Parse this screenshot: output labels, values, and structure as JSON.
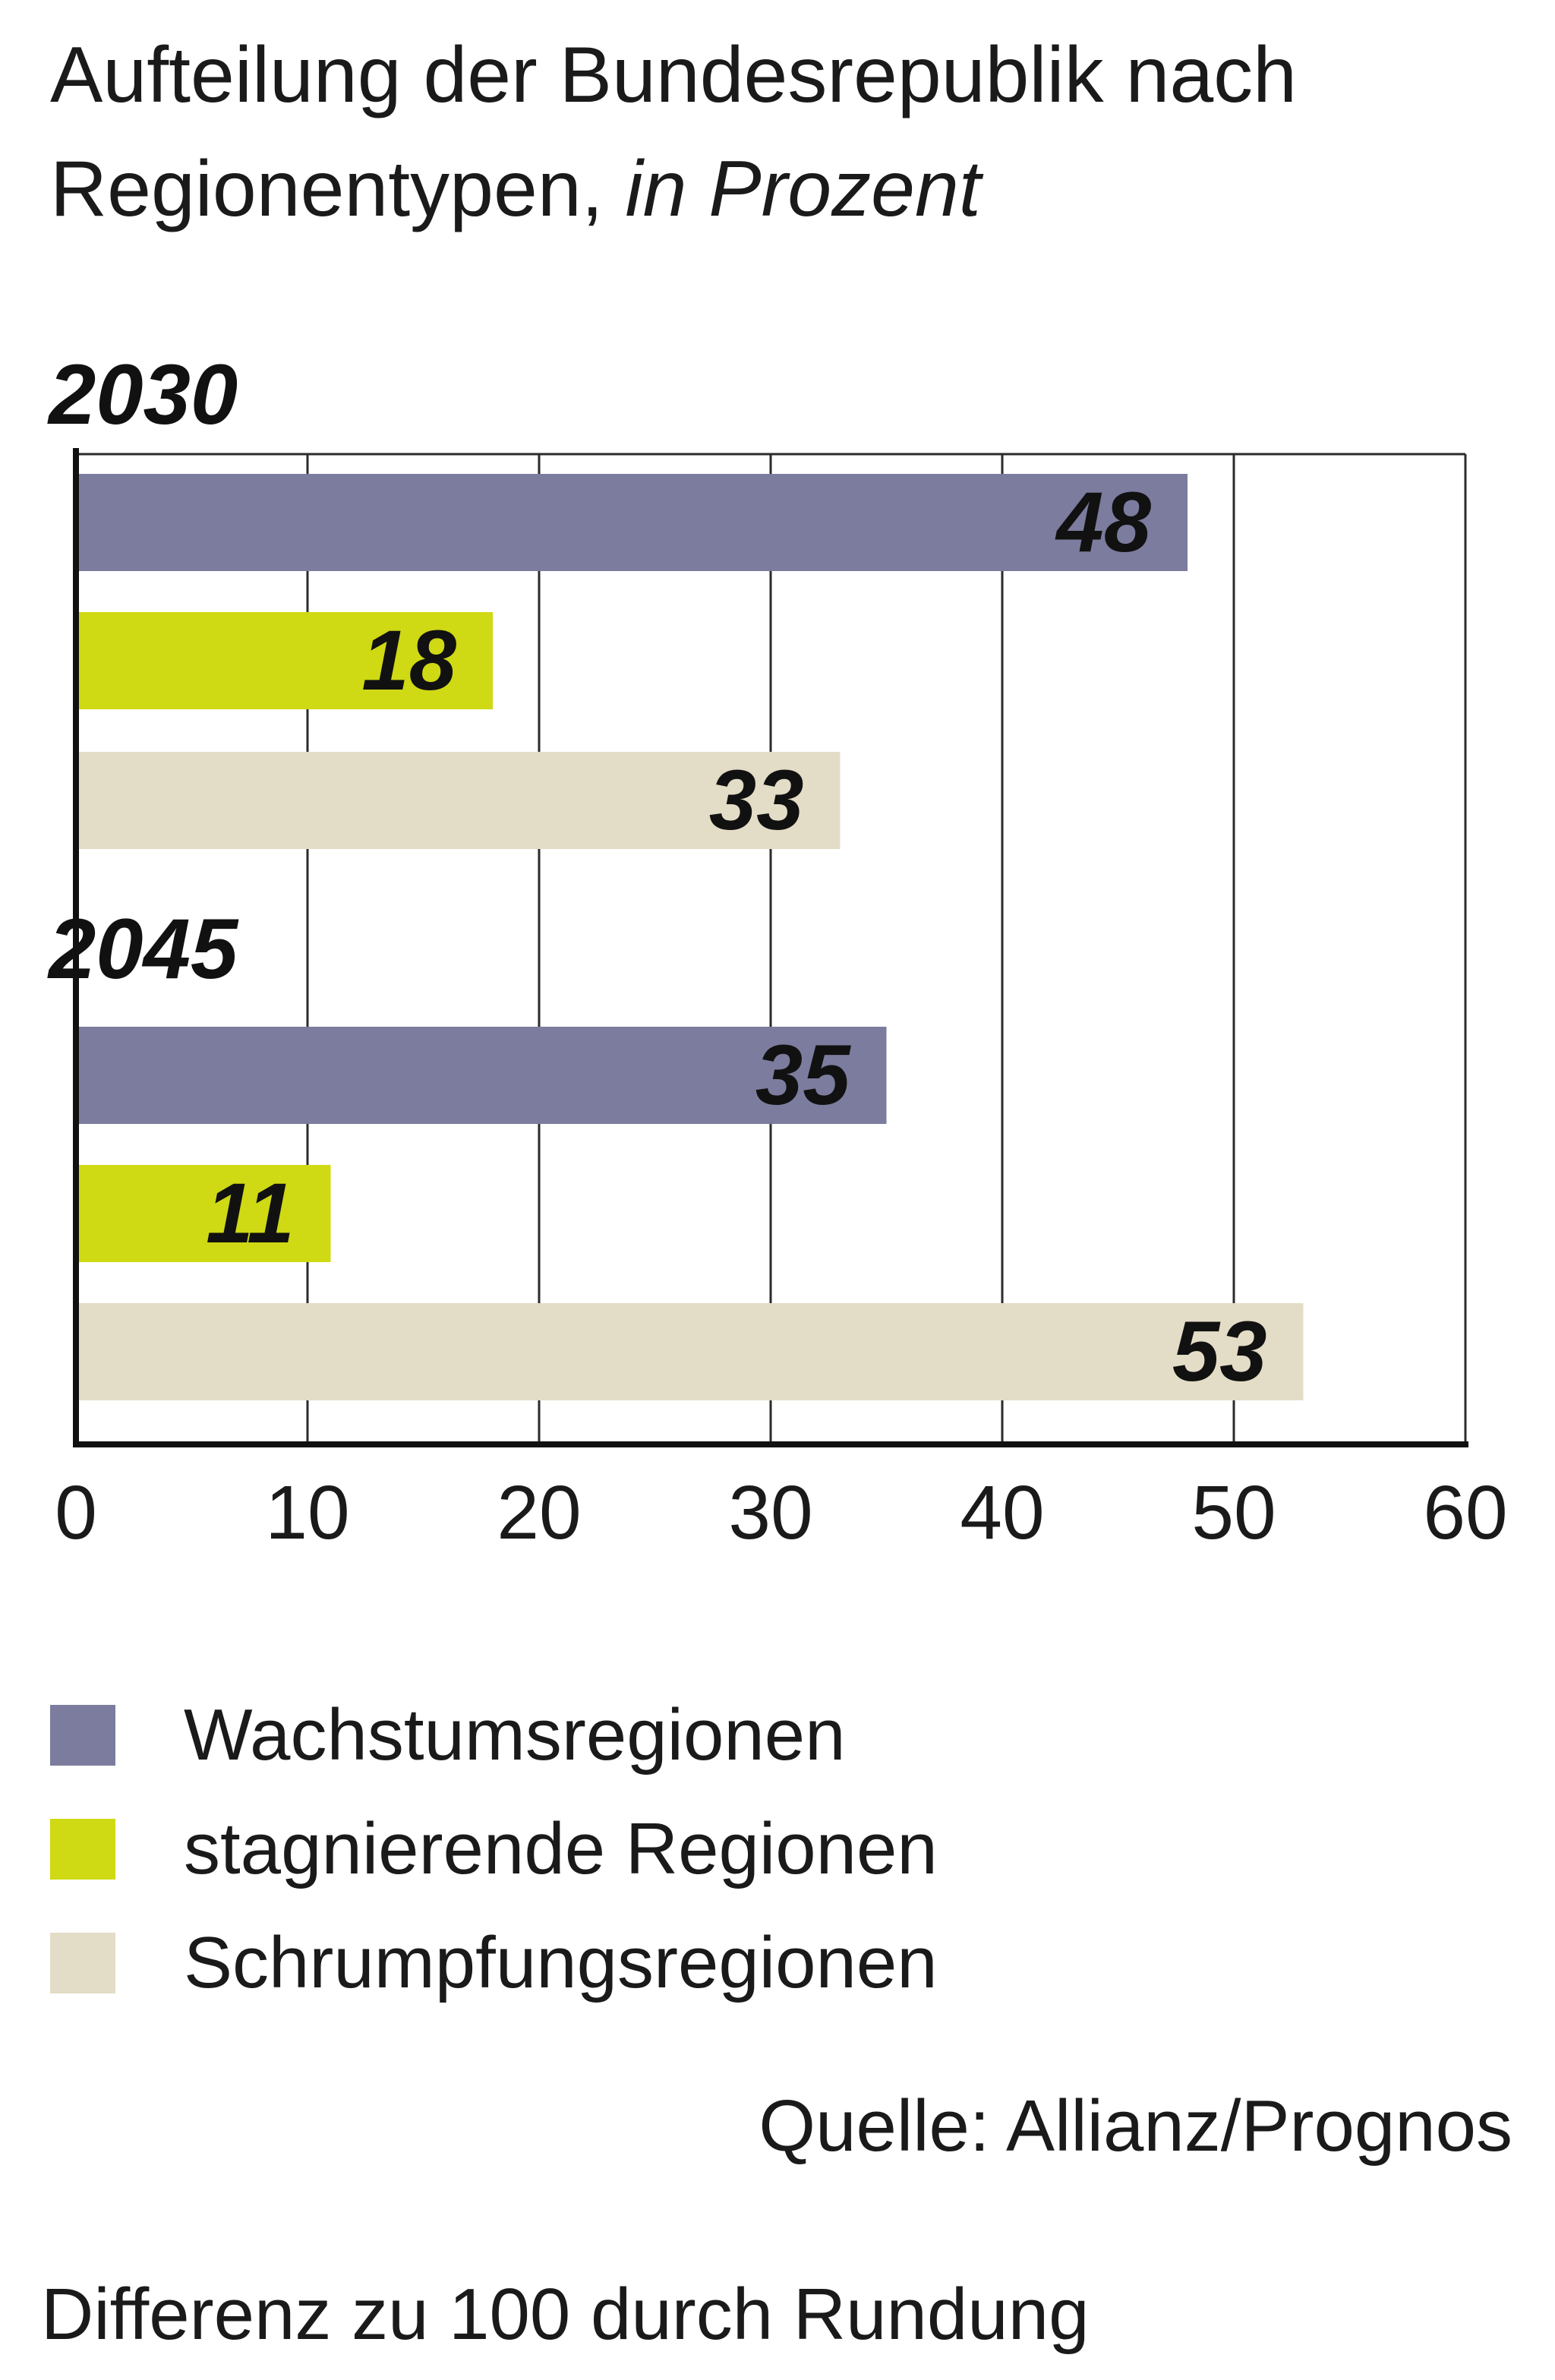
{
  "title": "Aufteilung der Bundesrepublik nach",
  "title_line2": "Regionentypen,",
  "title_unit": "in Prozent",
  "source": "Quelle: Allianz/Prognos",
  "footnote": "Differenz zu 100 durch Rundung",
  "chart_data": {
    "type": "bar",
    "orientation": "horizontal",
    "groups": [
      "2030",
      "2045"
    ],
    "series": [
      {
        "name": "Wachstumsregionen",
        "color": "#7b7c9e",
        "values": [
          48,
          35
        ]
      },
      {
        "name": "stagnierende Regionen",
        "color": "#cfd914",
        "values": [
          18,
          11
        ]
      },
      {
        "name": "Schrumpfungsregionen",
        "color": "#e3dcc6",
        "values": [
          33,
          53
        ]
      }
    ],
    "xlim": [
      0,
      60
    ],
    "xticks": [
      0,
      10,
      20,
      30,
      40,
      50,
      60
    ],
    "grid": true,
    "data_labels": true,
    "legend_position": "bottom-left"
  }
}
